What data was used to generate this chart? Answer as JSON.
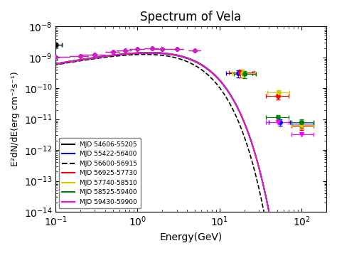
{
  "title": "Spectrum of Vela",
  "xlabel": "Energy(GeV)",
  "ylabel": "E²dN/dE(erg cm⁻²s⁻¹)",
  "xlim": [
    0.1,
    200
  ],
  "ylim": [
    1e-14,
    1e-08
  ],
  "series": [
    {
      "label": "MJD 54606-55205",
      "color": "black",
      "linestyle": "-",
      "curve_params": {
        "E0": 1.0,
        "N0": 2e-09,
        "alpha": 1.51,
        "Ec": 2.86
      },
      "data_x": [
        0.1
      ],
      "data_y": [
        2.5e-09
      ],
      "data_xerr": [
        0.02
      ],
      "data_yerr": [
        2e-10
      ],
      "marker": "o",
      "is_upper_limit": false
    },
    {
      "label": "MJD 55422-56400",
      "color": "blue",
      "linestyle": "-",
      "curve_params": {
        "E0": 1.0,
        "N0": 1.9e-09,
        "alpha": 1.51,
        "Ec": 2.86
      },
      "data_x": [
        20.0,
        50.0,
        100.0
      ],
      "data_y": [
        3e-10,
        8e-12,
        7e-12
      ],
      "data_xerr_lo": [
        5.0,
        15.0,
        30.0
      ],
      "data_xerr_hi": [
        10.0,
        20.0,
        50.0
      ],
      "data_yerr": [
        5e-11,
        2e-12,
        2e-12
      ],
      "marker": "o",
      "is_upper_limit": false
    },
    {
      "label": "MJD 56600-56915",
      "color": "black",
      "linestyle": "--",
      "curve_params": {
        "E0": 1.0,
        "N0": 1.85e-09,
        "alpha": 1.51,
        "Ec": 2.5
      },
      "data_x": [],
      "data_y": [],
      "data_xerr": [],
      "data_yerr": [],
      "marker": "o",
      "is_upper_limit": false
    },
    {
      "label": "MJD 56925-57730",
      "color": "red",
      "linestyle": "-",
      "curve_params": {
        "E0": 1.0,
        "N0": 1.95e-09,
        "alpha": 1.51,
        "Ec": 2.86
      },
      "data_x": [
        20.0,
        50.0,
        100.0
      ],
      "data_y": [
        2.8e-10,
        5e-11,
        6.5e-12
      ],
      "data_xerr_lo": [
        5.0,
        15.0,
        30.0
      ],
      "data_xerr_hi": [
        10.0,
        20.0,
        50.0
      ],
      "data_yerr": [
        5e-11,
        1e-11,
        2e-12
      ],
      "marker": "o",
      "is_upper_limit": false
    },
    {
      "label": "MJD 57740-58510",
      "color": "#cccc00",
      "linestyle": "-",
      "curve_params": {
        "E0": 1.0,
        "N0": 1.95e-09,
        "alpha": 1.51,
        "Ec": 2.86
      },
      "data_x": [
        20.0,
        50.0,
        100.0
      ],
      "data_y": [
        2.6e-10,
        7e-11,
        6e-12
      ],
      "data_xerr_lo": [
        5.0,
        15.0,
        30.0
      ],
      "data_xerr_hi": [
        10.0,
        20.0,
        50.0
      ],
      "data_yerr": [
        5e-11,
        1e-11,
        2e-12
      ],
      "marker": "o",
      "is_upper_limit": false
    },
    {
      "label": "MJD 58525-59400",
      "color": "green",
      "linestyle": "-",
      "curve_params": {
        "E0": 1.0,
        "N0": 1.95e-09,
        "alpha": 1.51,
        "Ec": 2.86
      },
      "data_x": [
        20.0,
        50.0,
        100.0
      ],
      "data_y": [
        2.6e-10,
        1.1e-11,
        7.5e-12
      ],
      "data_xerr_lo": [
        5.0,
        15.0,
        30.0
      ],
      "data_xerr_hi": [
        10.0,
        20.0,
        50.0
      ],
      "data_yerr": [
        5e-11,
        2e-12,
        2e-12
      ],
      "marker": "o",
      "is_upper_limit": false
    },
    {
      "label": "MJD 59430-59900",
      "color": "magenta",
      "linestyle": "-",
      "curve_params": {
        "E0": 1.0,
        "N0": 1.95e-09,
        "alpha": 1.51,
        "Ec": 2.86
      },
      "data_x": [
        50.0,
        100.0
      ],
      "data_y": [
        8e-12,
        3e-12
      ],
      "data_xerr_lo": [
        15.0,
        30.0
      ],
      "data_xerr_hi": [
        20.0,
        50.0
      ],
      "data_yerr": [
        2e-12,
        1e-12
      ],
      "marker": "v",
      "is_upper_limit": [
        false,
        true
      ]
    }
  ],
  "shared_data_x": [
    0.1,
    0.2,
    0.3,
    0.5,
    0.7,
    1.0,
    1.5,
    2.0,
    3.0,
    5.0
  ],
  "shared_data_y": [
    1.05e-09,
    1.1e-09,
    1.2e-09,
    1.55e-09,
    1.7e-09,
    1.85e-09,
    1.95e-09,
    1.9e-09,
    1.85e-09,
    1.7e-09
  ],
  "shared_xerr": [
    0.05,
    0.05,
    0.1,
    0.1,
    0.15,
    0.2,
    0.3,
    0.4,
    0.6,
    0.8
  ]
}
